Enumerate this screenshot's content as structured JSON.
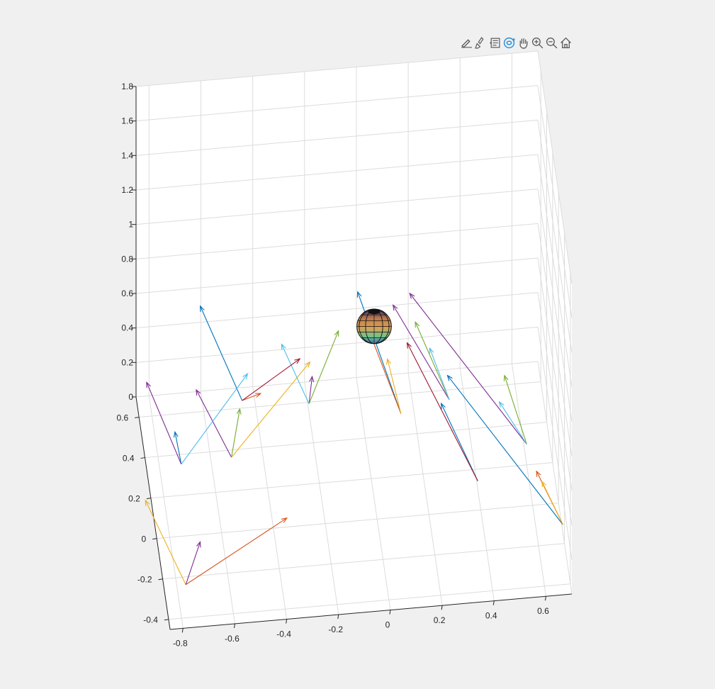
{
  "toolbar": {
    "buttons": [
      {
        "name": "edit-plot-icon"
      },
      {
        "name": "brush-icon"
      },
      {
        "name": "data-tips-icon"
      },
      {
        "name": "rotate-3d-icon",
        "active": true
      },
      {
        "name": "pan-icon"
      },
      {
        "name": "zoom-in-icon"
      },
      {
        "name": "zoom-out-icon"
      },
      {
        "name": "home-icon"
      }
    ],
    "active_color": "#2f8fd8",
    "icon_color": "#555555"
  },
  "chart_data": {
    "type": "quiver3",
    "title": "",
    "xlabel": "",
    "ylabel": "",
    "zlabel": "",
    "grid": true,
    "x_ticks": [
      "-0.8",
      "-0.6",
      "-0.4",
      "-0.2",
      "0",
      "0.2",
      "0.4",
      "0.6"
    ],
    "y_ticks": [
      "-0.4",
      "-0.2",
      "0",
      "0.2",
      "0.4",
      "0.6"
    ],
    "z_ticks": [
      "0",
      "0.2",
      "0.4",
      "0.6",
      "0.8",
      "1",
      "1.2",
      "1.4",
      "1.6",
      "1.8"
    ],
    "xlim": [
      -0.85,
      0.7
    ],
    "ylim": [
      -0.45,
      0.7
    ],
    "zlim": [
      0,
      1.8
    ],
    "sphere": {
      "center": [
        0,
        0.1,
        1
      ],
      "radius": 0.05
    },
    "colors": [
      "#0072bd",
      "#d95319",
      "#edb120",
      "#7e2f8e",
      "#77ac30",
      "#4dbeee",
      "#a2142f"
    ],
    "bases": [
      [
        -0.72,
        0.31,
        0.05
      ],
      [
        -0.45,
        0.62,
        0.02
      ],
      [
        -0.53,
        0.28,
        0.1
      ],
      [
        -0.77,
        -0.28,
        0.05
      ],
      [
        -0.2,
        0.55,
        0.05
      ],
      [
        0.14,
        0.42,
        0.1
      ],
      [
        0.33,
        0.45,
        0.12
      ],
      [
        0.6,
        0.2,
        0.12
      ],
      [
        0.4,
        0.1,
        0.05
      ],
      [
        0.7,
        -0.15,
        0.05
      ]
    ],
    "series": [
      {
        "color_index": 0,
        "vectors": [
          [
            -0.72,
            0.31,
            0.05,
            -0.03,
            -0.05,
            0.25
          ],
          [
            -0.45,
            0.62,
            0.02,
            -0.15,
            0.1,
            0.45
          ],
          [
            0.14,
            0.42,
            0.1,
            -0.15,
            0.15,
            0.55
          ],
          [
            0.4,
            0.1,
            0.05,
            -0.13,
            0.1,
            0.35
          ],
          [
            0.7,
            -0.15,
            0.05,
            -0.4,
            0.4,
            0.45
          ]
        ]
      },
      {
        "color_index": 1,
        "vectors": [
          [
            -0.45,
            0.62,
            0.02,
            0.06,
            -0.1,
            0.15
          ],
          [
            -0.77,
            -0.28,
            0.05,
            0.35,
            -0.35,
            0.75
          ],
          [
            0.14,
            0.42,
            0.1,
            -0.13,
            0.1,
            0.45
          ],
          [
            0.7,
            -0.15,
            0.05,
            -0.1,
            0.02,
            0.3
          ]
        ]
      },
      {
        "color_index": 2,
        "vectors": [
          [
            -0.77,
            -0.28,
            0.05,
            -0.15,
            0.05,
            0.45
          ],
          [
            -0.53,
            0.28,
            0.1,
            0.28,
            -0.2,
            0.75
          ],
          [
            0.14,
            0.42,
            0.1,
            -0.05,
            0.02,
            0.3
          ],
          [
            0.7,
            -0.15,
            0.05,
            -0.08,
            0.01,
            0.25
          ]
        ]
      },
      {
        "color_index": 3,
        "vectors": [
          [
            -0.72,
            0.31,
            0.05,
            -0.12,
            0.12,
            0.35
          ],
          [
            -0.53,
            0.28,
            0.1,
            -0.13,
            0.05,
            0.35
          ],
          [
            -0.77,
            -0.28,
            0.05,
            0.05,
            -0.05,
            0.3
          ],
          [
            -0.2,
            0.55,
            0.05,
            0.01,
            -0.02,
            0.18
          ],
          [
            0.33,
            0.45,
            0.12,
            -0.2,
            0.15,
            0.4
          ],
          [
            0.6,
            0.2,
            0.12,
            -0.4,
            0.45,
            0.4
          ]
        ]
      },
      {
        "color_index": 4,
        "vectors": [
          [
            -0.53,
            0.28,
            0.1,
            0.03,
            -0.02,
            0.3
          ],
          [
            -0.2,
            0.55,
            0.05,
            0.1,
            -0.12,
            0.55
          ],
          [
            0.33,
            0.45,
            0.12,
            -0.12,
            0.1,
            0.35
          ],
          [
            0.6,
            0.2,
            0.12,
            -0.08,
            0.05,
            0.35
          ]
        ]
      },
      {
        "color_index": 5,
        "vectors": [
          [
            -0.72,
            0.31,
            0.05,
            0.25,
            -0.05,
            0.55
          ],
          [
            -0.2,
            0.55,
            0.05,
            -0.1,
            0.05,
            0.3
          ],
          [
            0.33,
            0.45,
            0.12,
            -0.07,
            0.05,
            0.25
          ],
          [
            0.6,
            0.2,
            0.12,
            -0.1,
            0.05,
            0.2
          ]
        ]
      },
      {
        "color_index": 6,
        "vectors": [
          [
            -0.45,
            0.62,
            0.02,
            0.2,
            -0.2,
            0.45
          ],
          [
            0.4,
            0.1,
            0.05,
            -0.25,
            0.2,
            0.6
          ]
        ]
      }
    ]
  }
}
